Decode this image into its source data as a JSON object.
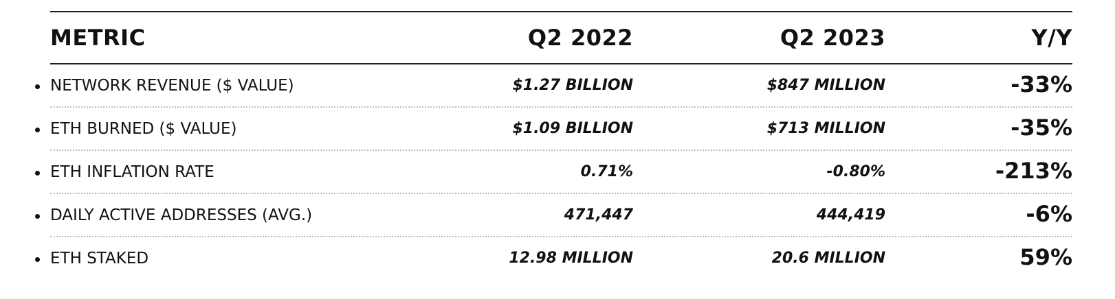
{
  "table": {
    "header": [
      "METRIC",
      "Q2 2022",
      "Q2 2023",
      "Y/Y"
    ],
    "rows": [
      [
        "NETWORK REVENUE ($ VALUE)",
        "$1.27 BILLION",
        "$847 MILLION",
        "-33%"
      ],
      [
        "ETH BURNED ($ VALUE)",
        "$1.09 BILLION",
        "$713 MILLION",
        "-35%"
      ],
      [
        "ETH INFLATION RATE",
        "0.71%",
        "-0.80%",
        "-213%"
      ],
      [
        "DAILY ACTIVE ADDRESSES (AVG.)",
        "471,447",
        "444,419",
        "-6%"
      ],
      [
        "ETH STAKED",
        "12.98 MILLION",
        "20.6 MILLION",
        "59%"
      ]
    ]
  }
}
